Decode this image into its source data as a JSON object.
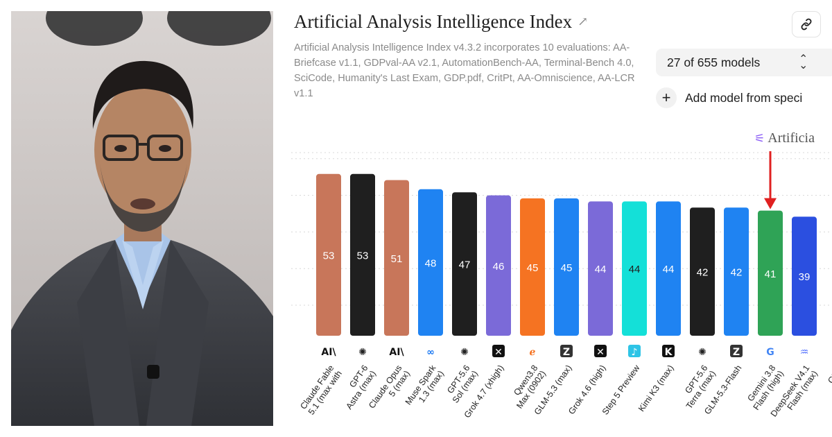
{
  "header": {
    "title": "Artificial Analysis Intelligence Index",
    "title_link_icon": "arrow-up-right-icon",
    "subtitle": "Artificial Analysis Intelligence Index v4.3.2 incorporates 10 evaluations: AA-Briefcase v1.1, GDPval-AA v2.1, AutomationBench-AA, Terminal-Bench 4.0, SciCode, Humanity's Last Exam, GDP.pdf, CritPt, AA-Omniscience, AA-LCR v1.1",
    "link_icon": "link-icon"
  },
  "controls": {
    "models_selected": "27 of 655 models",
    "models_chevron_icon": "chevron-up-down-icon",
    "add_model_label": "Add model from speci",
    "add_icon": "plus-icon"
  },
  "watermark": {
    "text": "Artificia",
    "icon": "artificial-analysis-logo"
  },
  "photo": {
    "description_icon": "portrait-photo"
  },
  "chart_data": {
    "type": "bar",
    "title": "",
    "xlabel": "",
    "ylabel": "",
    "ylim": [
      0,
      60
    ],
    "grid": true,
    "categories": [
      [
        "Claude Fable",
        "5.1 (max with"
      ],
      [
        "GPT-6",
        "Astra (max)"
      ],
      [
        "Claude Opus",
        "5 (max)"
      ],
      [
        "Muse Spark",
        "1.3 (max)"
      ],
      [
        "GPT-5.6",
        "Sol (max)"
      ],
      [
        "Grok 4.7 (xhigh)"
      ],
      [
        "Qwen3.8",
        "Max (0902)"
      ],
      [
        "GLM-5.3 (max)"
      ],
      [
        "Grok 4.6 (high)"
      ],
      [
        "Step 5 Preview"
      ],
      [
        "Kimi K3 (max)"
      ],
      [
        "GPT-5.6",
        "Terra (max)"
      ],
      [
        "GLM-5.3-Flash"
      ],
      [
        "Gemini 3.8",
        "Flash (high)"
      ],
      [
        "DeepSeek V4.1",
        "Flash (max)"
      ],
      [
        "GPT-",
        "Lu"
      ]
    ],
    "values": [
      53,
      53,
      51,
      48,
      47,
      46,
      45,
      45,
      44,
      44,
      44,
      42,
      42,
      41,
      39,
      null
    ],
    "value_labels": [
      "53",
      "53",
      "51",
      "48",
      "47",
      "46",
      "45",
      "45",
      "44",
      "44",
      "44",
      "42",
      "42",
      "41",
      "39",
      ""
    ],
    "colors": [
      "#c8765a",
      "#1f1f1f",
      "#c8765a",
      "#1f83f2",
      "#1f1f1f",
      "#7b6ad8",
      "#f57322",
      "#1f83f2",
      "#7b6ad8",
      "#14e0d8",
      "#1f83f2",
      "#1f1f1f",
      "#1f83f2",
      "#2fa356",
      "#2b4fe0",
      "#1f1f1f"
    ],
    "label_colors": [
      "#ffffff",
      "#ffffff",
      "#ffffff",
      "#ffffff",
      "#ffffff",
      "#ffffff",
      "#ffffff",
      "#ffffff",
      "#ffffff",
      "#1f1f1f",
      "#ffffff",
      "#ffffff",
      "#ffffff",
      "#ffffff",
      "#ffffff",
      "#ffffff"
    ],
    "logos": [
      {
        "glyph": "AI\\",
        "color": "#111111",
        "bg": "none",
        "icon": "anthropic-logo-icon"
      },
      {
        "glyph": "✺",
        "color": "#222222",
        "bg": "none",
        "icon": "openai-logo-icon"
      },
      {
        "glyph": "AI\\",
        "color": "#111111",
        "bg": "none",
        "icon": "anthropic-logo-icon"
      },
      {
        "glyph": "∞",
        "color": "#1877f2",
        "bg": "none",
        "icon": "meta-logo-icon"
      },
      {
        "glyph": "✺",
        "color": "#222222",
        "bg": "none",
        "icon": "openai-logo-icon"
      },
      {
        "glyph": "✕",
        "color": "#ffffff",
        "bg": "#111111",
        "icon": "xai-logo-icon"
      },
      {
        "glyph": "ℯ",
        "color": "#f57322",
        "bg": "none",
        "icon": "alibaba-logo-icon"
      },
      {
        "glyph": "Z",
        "color": "#ffffff",
        "bg": "#333333",
        "icon": "zai-logo-icon"
      },
      {
        "glyph": "✕",
        "color": "#ffffff",
        "bg": "#111111",
        "icon": "xai-logo-icon"
      },
      {
        "glyph": "♪",
        "color": "#ffffff",
        "bg": "#2ec4e6",
        "icon": "stepfun-logo-icon"
      },
      {
        "glyph": "K",
        "color": "#ffffff",
        "bg": "#111111",
        "icon": "moonshot-logo-icon"
      },
      {
        "glyph": "✺",
        "color": "#222222",
        "bg": "none",
        "icon": "openai-logo-icon"
      },
      {
        "glyph": "Z",
        "color": "#ffffff",
        "bg": "#333333",
        "icon": "zai-logo-icon"
      },
      {
        "glyph": "G",
        "color": "#4285f4",
        "bg": "none",
        "icon": "google-logo-icon"
      },
      {
        "glyph": "♒",
        "color": "#4d6bfe",
        "bg": "none",
        "icon": "deepseek-logo-icon"
      },
      {
        "glyph": "",
        "color": "#222222",
        "bg": "none",
        "icon": "openai-logo-icon"
      }
    ],
    "highlight_index": 13,
    "highlight_color": "#e02020"
  }
}
